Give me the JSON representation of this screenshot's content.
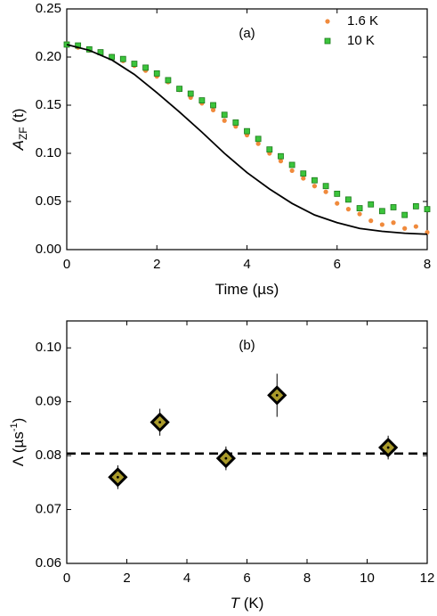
{
  "chart_data": [
    {
      "type": "scatter",
      "annotation": "(a)",
      "xlabel": "Time (µs)",
      "ylabel": "A",
      "ylabel_sub": "ZF",
      "ylabel_suffix": " (t)",
      "xlim": [
        0,
        8
      ],
      "ylim": [
        0,
        0.25
      ],
      "xticks": [
        0,
        2,
        4,
        6,
        8
      ],
      "yticks": [
        {
          "value": 0,
          "label": "0.00"
        },
        {
          "value": 0.05,
          "label": "0.05"
        },
        {
          "value": 0.1,
          "label": "0.10"
        },
        {
          "value": 0.15,
          "label": "0.15"
        },
        {
          "value": 0.2,
          "label": "0.20"
        },
        {
          "value": 0.25,
          "label": "0.25"
        }
      ],
      "legend": "upper right",
      "series": [
        {
          "name": "1.6 K",
          "color": "#f08a3c",
          "marker": "circle",
          "x": [
            0,
            0.25,
            0.5,
            0.75,
            1,
            1.25,
            1.5,
            1.75,
            2,
            2.25,
            2.5,
            2.75,
            3,
            3.25,
            3.5,
            3.75,
            4,
            4.25,
            4.5,
            4.75,
            5,
            5.25,
            5.5,
            5.75,
            6,
            6.25,
            6.5,
            6.75,
            7,
            7.25,
            7.5,
            7.75,
            8
          ],
          "values": [
            0.214,
            0.21,
            0.207,
            0.204,
            0.201,
            0.196,
            0.191,
            0.186,
            0.18,
            0.174,
            0.166,
            0.158,
            0.152,
            0.145,
            0.134,
            0.128,
            0.119,
            0.11,
            0.1,
            0.092,
            0.082,
            0.074,
            0.066,
            0.06,
            0.048,
            0.042,
            0.037,
            0.03,
            0.026,
            0.028,
            0.022,
            0.024,
            0.018
          ]
        },
        {
          "name": "10 K",
          "color": "#3cc43c",
          "marker": "square",
          "x": [
            0,
            0.25,
            0.5,
            0.75,
            1,
            1.25,
            1.5,
            1.75,
            2,
            2.25,
            2.5,
            2.75,
            3,
            3.25,
            3.5,
            3.75,
            4,
            4.25,
            4.5,
            4.75,
            5,
            5.25,
            5.5,
            5.75,
            6,
            6.25,
            6.5,
            6.75,
            7,
            7.25,
            7.5,
            7.75,
            8
          ],
          "values": [
            0.213,
            0.212,
            0.208,
            0.205,
            0.2,
            0.198,
            0.193,
            0.189,
            0.183,
            0.176,
            0.167,
            0.162,
            0.155,
            0.15,
            0.14,
            0.132,
            0.123,
            0.115,
            0.104,
            0.097,
            0.088,
            0.079,
            0.072,
            0.066,
            0.058,
            0.052,
            0.043,
            0.047,
            0.04,
            0.044,
            0.036,
            0.045,
            0.042
          ]
        },
        {
          "color": "#000000",
          "marker": "line",
          "x": [
            0,
            0.5,
            1,
            1.5,
            2,
            2.5,
            3,
            3.5,
            4,
            4.5,
            5,
            5.5,
            6,
            6.5,
            7,
            7.5,
            8
          ],
          "values": [
            0.213,
            0.207,
            0.197,
            0.182,
            0.163,
            0.143,
            0.122,
            0.1,
            0.08,
            0.063,
            0.048,
            0.036,
            0.028,
            0.022,
            0.019,
            0.017,
            0.016
          ]
        }
      ]
    },
    {
      "type": "scatter",
      "annotation": "(b)",
      "xlabel": "T",
      "xlabel_suffix": " (K)",
      "ylabel": "Λ (µs",
      "ylabel_sup": "-1",
      "ylabel_suffix": ")",
      "xlim": [
        0,
        12
      ],
      "ylim": [
        0.06,
        0.105
      ],
      "xticks": [
        0,
        2,
        4,
        6,
        8,
        10,
        12
      ],
      "yticks": [
        {
          "value": 0.06,
          "label": "0.06"
        },
        {
          "value": 0.07,
          "label": "0.07"
        },
        {
          "value": 0.08,
          "label": "0.08"
        },
        {
          "value": 0.09,
          "label": "0.09"
        },
        {
          "value": 0.1,
          "label": "0.10"
        }
      ],
      "reference_line": {
        "value": 0.0804,
        "style": "dashed",
        "color": "#000000"
      },
      "series": [
        {
          "color": "#a99a2a",
          "marker": "diamond",
          "x": [
            1.7,
            3.1,
            5.3,
            7.0,
            10.7
          ],
          "values": [
            0.076,
            0.0862,
            0.0795,
            0.0912,
            0.0815
          ],
          "errors": [
            0.0022,
            0.0025,
            0.0022,
            0.004,
            0.0022
          ]
        }
      ]
    }
  ]
}
